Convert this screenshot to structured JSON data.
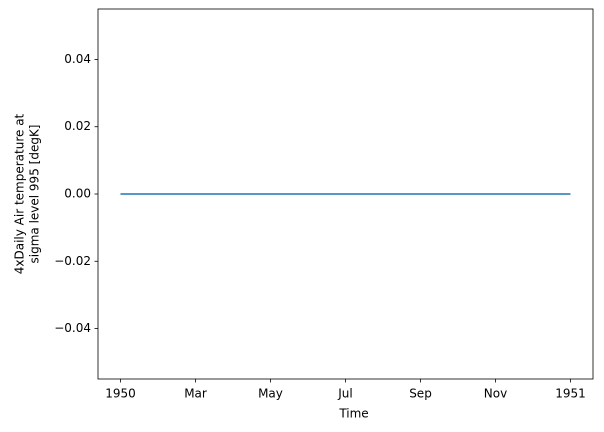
{
  "chart_data": {
    "type": "line",
    "xlabel": "Time",
    "ylabel": [
      "4xDaily Air temperature at",
      "sigma level 995 [degK]"
    ],
    "x": [
      1950,
      1951
    ],
    "series": [
      {
        "color": "#1f77b4",
        "values": [
          0,
          0
        ]
      }
    ],
    "xlim": [
      1949.95,
      1951.05
    ],
    "xticks": [
      {
        "value": 1950,
        "label": "1950"
      },
      {
        "value": 1950.1667,
        "label": "Mar"
      },
      {
        "value": 1950.3333,
        "label": "May"
      },
      {
        "value": 1950.5,
        "label": "Jul"
      },
      {
        "value": 1950.6667,
        "label": "Sep"
      },
      {
        "value": 1950.8333,
        "label": "Nov"
      },
      {
        "value": 1951,
        "label": "1951"
      }
    ],
    "ylim": [
      -0.055,
      0.055
    ],
    "yticks": [
      {
        "value": -0.04,
        "label": "−0.04"
      },
      {
        "value": -0.02,
        "label": "−0.02"
      },
      {
        "value": 0,
        "label": "0.00"
      },
      0.02,
      0.04
    ]
  }
}
